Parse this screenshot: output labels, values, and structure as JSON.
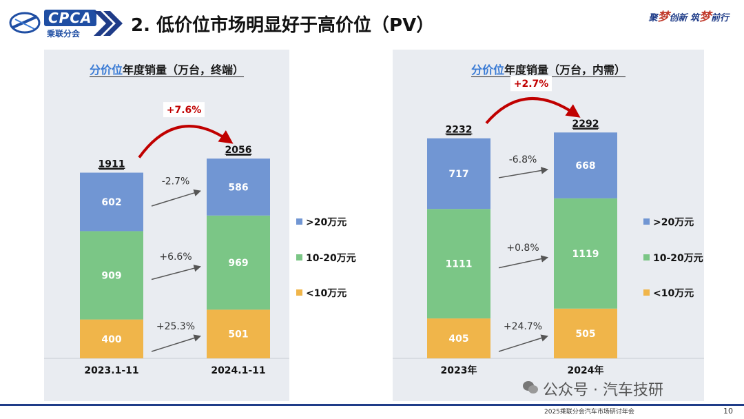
{
  "header": {
    "logo_text": "CPCA",
    "logo_sub": "乘联分会",
    "title": "2. 低价位市场明显好于高价位（PV）",
    "slogan_parts": [
      "聚",
      "梦",
      "创新  筑",
      "梦",
      "前行"
    ]
  },
  "footer": {
    "text": "2025乘联分会汽车市场研讨年会",
    "page": "10",
    "watermark": "公众号 · 汽车技研"
  },
  "legend": [
    {
      "label": ">20万元",
      "color": "#7196d3"
    },
    {
      "label": "10-20万元",
      "color": "#7bc686"
    },
    {
      "label": "<10万元",
      "color": "#f0b54a"
    }
  ],
  "charts": [
    {
      "title_key": "分价位",
      "title_rest": "年度销量（万台，终端）"
    },
    {
      "title_key": "分价位",
      "title_rest": "年度销量（万台，内需）"
    }
  ],
  "chart_data": [
    {
      "type": "bar",
      "stacked": true,
      "title": "分价位年度销量（万台，终端）",
      "categories": [
        "2023.1-11",
        "2024.1-11"
      ],
      "series": [
        {
          "name": "<10万元",
          "values": [
            400,
            501
          ],
          "color": "#f0b54a"
        },
        {
          "name": "10-20万元",
          "values": [
            909,
            969
          ],
          "color": "#7bc686"
        },
        {
          "name": ">20万元",
          "values": [
            602,
            586
          ],
          "color": "#7196d3"
        }
      ],
      "totals": [
        1911,
        2056
      ],
      "total_change": "+7.6%",
      "segment_changes": [
        "+25.3%",
        "+6.6%",
        "-2.7%"
      ],
      "ylim": [
        0,
        2300
      ]
    },
    {
      "type": "bar",
      "stacked": true,
      "title": "分价位年度销量（万台，内需）",
      "categories": [
        "2023年",
        "2024年"
      ],
      "series": [
        {
          "name": "<10万元",
          "values": [
            405,
            505
          ],
          "color": "#f0b54a"
        },
        {
          "name": "10-20万元",
          "values": [
            1111,
            1119
          ],
          "color": "#7bc686"
        },
        {
          "name": ">20万元",
          "values": [
            717,
            668
          ],
          "color": "#7196d3"
        }
      ],
      "totals": [
        2232,
        2292
      ],
      "total_change": "+2.7%",
      "segment_changes": [
        "+24.7%",
        "+0.8%",
        "-6.8%"
      ],
      "ylim": [
        0,
        2300
      ]
    }
  ]
}
